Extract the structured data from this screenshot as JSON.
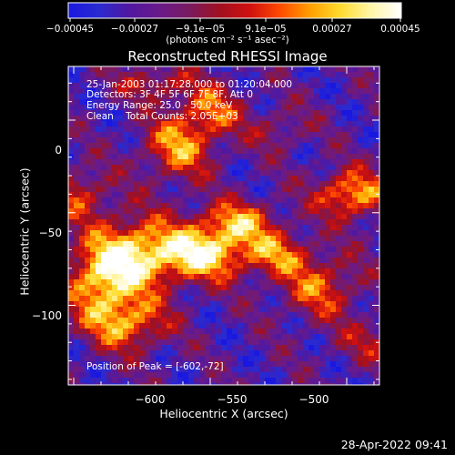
{
  "chart_data": {
    "type": "heatmap",
    "title": "Reconstructed RHESSI Image",
    "xlabel": "Heliocentric X (arcsec)",
    "ylabel": "Heliocentric Y (arcsec)",
    "xlim": [
      -652,
      -538
    ],
    "ylim": [
      -143,
      29
    ],
    "x_ticks": [
      -600,
      -550,
      -500
    ],
    "x_tick_labels": [
      "−600",
      "−550",
      "−500"
    ],
    "y_ticks": [
      0,
      -50,
      -100
    ],
    "y_tick_labels": [
      "0",
      "−50",
      "−100"
    ],
    "colorbar": {
      "min": -0.00045,
      "max": 0.00045,
      "ticks": [
        "−0.00045",
        "−0.00027",
        "−9.1e−05",
        "9.1e−05",
        "0.00027",
        "0.00045"
      ],
      "unit_label": "(photons cm⁻² s⁻¹ asec⁻²)",
      "colors": [
        "#1a18e0",
        "#2a2ad0",
        "#5018a0",
        "#6a1a8a",
        "#7a1a60",
        "#a01020",
        "#d01010",
        "#ff4a00",
        "#ffa000",
        "#ffdc30",
        "#fff6a8",
        "#ffffff"
      ]
    },
    "peak": {
      "x": -602,
      "y": -72
    },
    "info": {
      "time_range": "25-Jan-2003 01:17:28.000 to 01:20:04.000",
      "detectors": "Detectors: 3F 4F 5F 6F 7F 8F, Att 0",
      "energy_range": "Energy Range: 25.0 - 50.0 keV",
      "method_counts": "Clean    Total Counts: 2.05E+03",
      "peak_text": "Position of Peak = [-602,-72]"
    }
  },
  "footer": {
    "timestamp": "28-Apr-2022 09:41"
  }
}
